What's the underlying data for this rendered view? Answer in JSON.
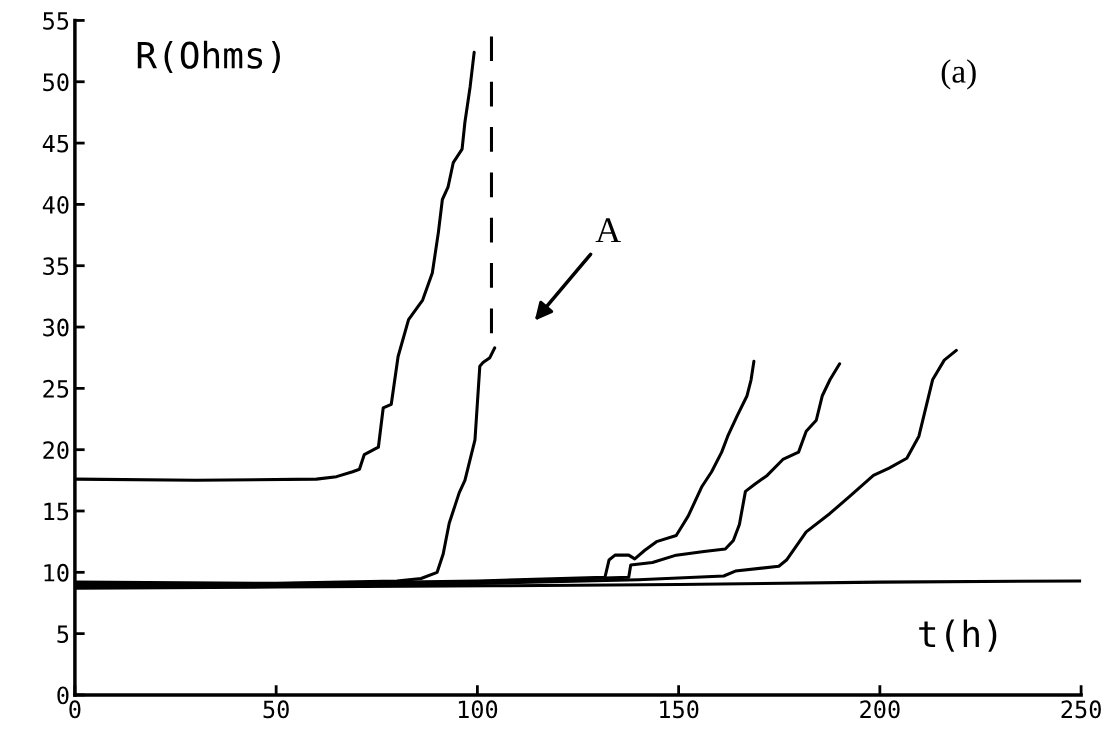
{
  "chart_data": {
    "type": "line",
    "xlabel": "t(h)",
    "ylabel": "R(Ohms)",
    "annotations": [
      "(a)",
      "A"
    ],
    "xlim": [
      0,
      250
    ],
    "xticks": [
      0,
      50,
      100,
      150,
      200,
      250
    ],
    "ylim": [
      0,
      55
    ],
    "yticks": [
      0,
      5,
      10,
      15,
      20,
      25,
      30,
      35,
      40,
      45,
      50,
      55
    ],
    "grid": false,
    "marker": "none",
    "line_style": "solid",
    "series": [
      {
        "color": "#000000",
        "x": [
          0,
          30,
          60,
          65,
          69,
          70.7,
          71.9,
          75.4,
          76.6,
          78.6,
          80.3,
          82.9,
          86.4,
          88.8,
          90.3,
          91.3,
          92.7,
          94.0,
          96.2,
          96.9,
          98.2,
          99.2
        ],
        "values": [
          17.6,
          17.5,
          17.6,
          17.8,
          18.2,
          18.4,
          19.6,
          20.2,
          23.4,
          23.7,
          27.6,
          30.6,
          32.2,
          34.4,
          37.7,
          40.4,
          41.4,
          43.4,
          44.5,
          46.7,
          49.6,
          52.4
        ]
      },
      {
        "color": "#000000",
        "x": [
          0,
          50,
          80,
          86,
          90,
          91.5,
          93,
          94.5,
          95.5,
          96.9,
          99.4,
          100.6,
          101.4,
          103.1,
          104.3
        ],
        "values": [
          9.2,
          9.1,
          9.3,
          9.5,
          10.0,
          11.5,
          14.0,
          15.5,
          16.5,
          17.5,
          20.8,
          26.8,
          27.1,
          27.5,
          28.3
        ]
      },
      {
        "color": "#000000",
        "x": [
          0,
          60,
          100,
          131.7,
          132.7,
          134.2,
          137.6,
          139.1,
          141.6,
          144.5,
          149.4,
          150.9,
          152.4,
          155.8,
          158.2,
          160.7,
          162.2,
          164.6,
          167.0,
          168.0,
          168.7
        ],
        "values": [
          9.0,
          9.1,
          9.3,
          9.6,
          11.0,
          11.4,
          11.4,
          11.1,
          11.8,
          12.5,
          13.0,
          13.8,
          14.6,
          17.0,
          18.2,
          19.8,
          21.1,
          22.8,
          24.4,
          25.7,
          27.2
        ]
      },
      {
        "color": "#000000",
        "x": [
          0,
          60,
          100,
          137.6,
          138.1,
          143.5,
          149.4,
          156.3,
          161.6,
          163.6,
          165.1,
          166.6,
          169.0,
          172.0,
          175.9,
          179.8,
          181.7,
          184.2,
          185.7,
          187.6,
          190.0
        ],
        "values": [
          8.9,
          9.0,
          9.2,
          9.6,
          10.6,
          10.8,
          11.4,
          11.7,
          11.9,
          12.6,
          13.9,
          16.6,
          17.2,
          17.9,
          19.2,
          19.8,
          21.5,
          22.4,
          24.4,
          25.7,
          27.0
        ]
      },
      {
        "color": "#000000",
        "x": [
          0,
          60,
          100,
          140,
          161.2,
          164.1,
          174.9,
          176.8,
          181.7,
          187.6,
          192.5,
          198.4,
          202.3,
          206.7,
          209.7,
          213.1,
          216.0,
          219.0
        ],
        "values": [
          8.8,
          8.9,
          9.1,
          9.4,
          9.7,
          10.1,
          10.5,
          11.0,
          13.3,
          14.8,
          16.2,
          17.9,
          18.5,
          19.3,
          21.1,
          25.7,
          27.3,
          28.1
        ]
      },
      {
        "color": "#000000",
        "x": [
          0,
          50,
          103.7,
          150,
          200,
          250
        ],
        "values": [
          8.7,
          8.8,
          8.9,
          9.0,
          9.2,
          9.3
        ]
      },
      {
        "color": "#000000",
        "line_style": "dashed",
        "x": [
          103.5,
          103.5
        ],
        "values": [
          53.7,
          29.5
        ]
      }
    ]
  }
}
